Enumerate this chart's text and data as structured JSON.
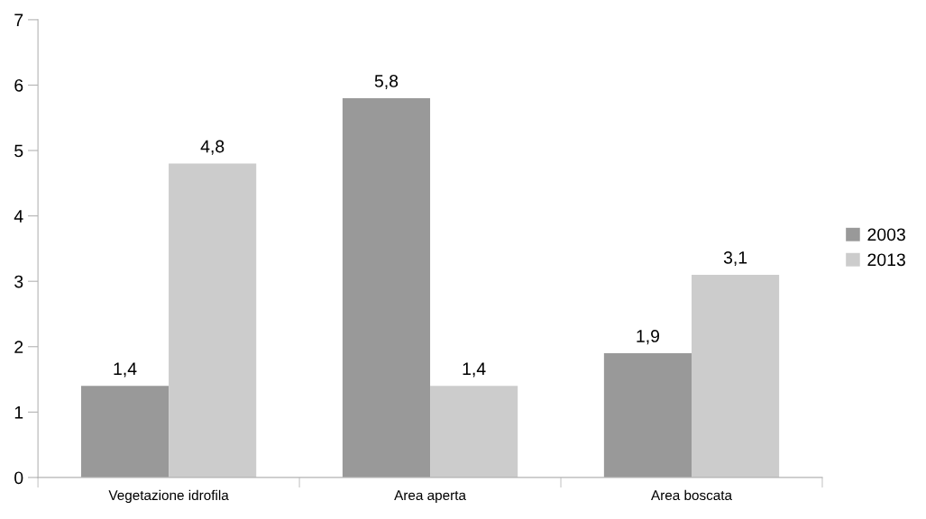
{
  "chart_data": {
    "type": "bar",
    "categories": [
      "Vegetazione idrofila",
      "Area aperta",
      "Area boscata"
    ],
    "series": [
      {
        "name": "2003",
        "color": "#999999",
        "values": [
          1.4,
          5.8,
          1.9
        ],
        "value_labels": [
          "1,4",
          "5,8",
          "1,9"
        ]
      },
      {
        "name": "2013",
        "color": "#cccccc",
        "values": [
          4.8,
          1.4,
          3.1
        ],
        "value_labels": [
          "4,8",
          "1,4",
          "3,1"
        ]
      }
    ],
    "ylim": [
      0,
      7
    ],
    "yticks": [
      0,
      1,
      2,
      3,
      4,
      5,
      6,
      7
    ],
    "grid": false,
    "legend": "right"
  }
}
